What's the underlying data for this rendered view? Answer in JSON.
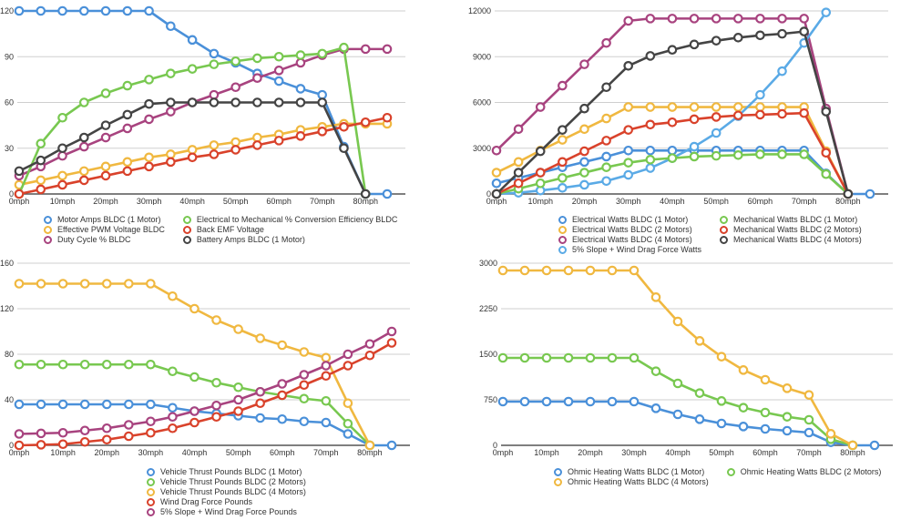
{
  "chart_data": [
    {
      "id": "chart1",
      "type": "line",
      "title": "",
      "xlabel": "",
      "ylabel": "",
      "x": [
        0,
        5,
        10,
        15,
        20,
        25,
        30,
        35,
        40,
        45,
        50,
        55,
        60,
        65,
        70,
        75,
        80,
        85
      ],
      "x_tick_labels": [
        "0mph",
        "10mph",
        "20mph",
        "30mph",
        "40mph",
        "50mph",
        "60mph",
        "70mph",
        "80mph"
      ],
      "x_tick_values": [
        0,
        10,
        20,
        30,
        40,
        50,
        60,
        70,
        80
      ],
      "ylim": [
        0,
        120
      ],
      "y_ticks": [
        0,
        30,
        60,
        90,
        120
      ],
      "grid": true,
      "legend_position": "bottom",
      "legend_columns": 2,
      "series": [
        {
          "name": "Motor Amps BLDC (1 Motor)",
          "color": "#4a90d9",
          "values": [
            120,
            120,
            120,
            120,
            120,
            120,
            120,
            110,
            101,
            92,
            86,
            79,
            74,
            69,
            65,
            31,
            0,
            0
          ]
        },
        {
          "name": "Effective PWM Voltage BLDC",
          "color": "#f0b840",
          "values": [
            6,
            9,
            12,
            15,
            18,
            21,
            24,
            26,
            29,
            32,
            34,
            37,
            39,
            42,
            44,
            46,
            46,
            46
          ]
        },
        {
          "name": "Duty Cycle % BLDC",
          "color": "#a8437f",
          "values": [
            12,
            18,
            25,
            31,
            37,
            43,
            49,
            54,
            60,
            65,
            70,
            76,
            81,
            86,
            91,
            95,
            95,
            95
          ]
        },
        {
          "name": "Electrical to Mechanical % Conversion Efficiency BLDC",
          "color": "#78c850",
          "values": [
            0,
            33,
            50,
            60,
            66,
            71,
            75,
            79,
            82,
            85,
            87,
            89,
            90,
            91,
            92,
            96,
            0,
            null
          ]
        },
        {
          "name": "Back EMF Voltage",
          "color": "#d9422b",
          "values": [
            0,
            3,
            6,
            9,
            12,
            15,
            18,
            21,
            24,
            26,
            29,
            32,
            35,
            38,
            41,
            44,
            47,
            50
          ]
        },
        {
          "name": "Battery Amps BLDC (1 Motor)",
          "color": "#444444",
          "values": [
            15,
            22,
            30,
            37,
            45,
            52,
            59,
            60,
            60,
            60,
            60,
            60,
            60,
            60,
            60,
            30,
            0,
            null
          ]
        }
      ]
    },
    {
      "id": "chart2",
      "type": "line",
      "title": "",
      "xlabel": "",
      "ylabel": "",
      "x": [
        0,
        5,
        10,
        15,
        20,
        25,
        30,
        35,
        40,
        45,
        50,
        55,
        60,
        65,
        70,
        75,
        80,
        85
      ],
      "x_tick_labels": [
        "0mph",
        "10mph",
        "20mph",
        "30mph",
        "40mph",
        "50mph",
        "60mph",
        "70mph",
        "80mph"
      ],
      "x_tick_values": [
        0,
        10,
        20,
        30,
        40,
        50,
        60,
        70,
        80
      ],
      "ylim": [
        0,
        12000
      ],
      "y_ticks": [
        0,
        3000,
        6000,
        9000,
        12000
      ],
      "grid": true,
      "legend_position": "bottom",
      "legend_columns": 2,
      "series": [
        {
          "name": "Electrical Watts BLDC (1 Motor)",
          "color": "#4a90d9",
          "values": [
            700,
            1050,
            1400,
            1750,
            2100,
            2450,
            2850,
            2850,
            2850,
            2850,
            2850,
            2850,
            2850,
            2850,
            2850,
            1350,
            0,
            0
          ]
        },
        {
          "name": "Electrical Watts BLDC (2 Motors)",
          "color": "#f0b840",
          "values": [
            1400,
            2100,
            2850,
            3550,
            4250,
            4950,
            5700,
            5700,
            5700,
            5700,
            5700,
            5700,
            5700,
            5700,
            5700,
            2800,
            0,
            null
          ]
        },
        {
          "name": "Electrical Watts BLDC (4 Motors)",
          "color": "#a8437f",
          "values": [
            2850,
            4250,
            5700,
            7100,
            8500,
            9900,
            11350,
            11500,
            11500,
            11500,
            11500,
            11500,
            11500,
            11500,
            11500,
            5600,
            0,
            null
          ]
        },
        {
          "name": "5% Slope + Wind Drag Force Watts",
          "color": "#5aaae6",
          "values": [
            0,
            80,
            230,
            400,
            600,
            850,
            1250,
            1700,
            2350,
            3100,
            4000,
            5100,
            6500,
            8050,
            9900,
            11900,
            null,
            null
          ]
        },
        {
          "name": "Mechanical Watts BLDC (1 Motor)",
          "color": "#78c850",
          "values": [
            0,
            350,
            700,
            1050,
            1400,
            1750,
            2050,
            2250,
            2350,
            2450,
            2500,
            2550,
            2600,
            2600,
            2600,
            1300,
            0,
            null
          ]
        },
        {
          "name": "Mechanical Watts BLDC (2 Motors)",
          "color": "#d9422b",
          "values": [
            0,
            700,
            1400,
            2100,
            2800,
            3500,
            4200,
            4550,
            4700,
            4900,
            5050,
            5150,
            5200,
            5250,
            5300,
            2700,
            0,
            null
          ]
        },
        {
          "name": "Mechanical Watts BLDC (4 Motors)",
          "color": "#444444",
          "values": [
            0,
            1400,
            2800,
            4200,
            5600,
            7000,
            8400,
            9050,
            9450,
            9800,
            10050,
            10250,
            10400,
            10500,
            10650,
            5400,
            0,
            null
          ]
        }
      ]
    },
    {
      "id": "chart3",
      "type": "line",
      "title": "",
      "xlabel": "",
      "ylabel": "",
      "x": [
        0,
        5,
        10,
        15,
        20,
        25,
        30,
        35,
        40,
        45,
        50,
        55,
        60,
        65,
        70,
        75,
        80,
        85
      ],
      "x_tick_labels": [
        "0mph",
        "10mph",
        "20mph",
        "30mph",
        "40mph",
        "50mph",
        "60mph",
        "70mph",
        "80mph"
      ],
      "x_tick_values": [
        0,
        10,
        20,
        30,
        40,
        50,
        60,
        70,
        80
      ],
      "ylim": [
        0,
        160
      ],
      "y_ticks": [
        0,
        40,
        80,
        120,
        160
      ],
      "grid": true,
      "legend_position": "bottom",
      "legend_columns": 1,
      "series": [
        {
          "name": "Vehicle Thrust Pounds BLDC (1 Motor)",
          "color": "#4a90d9",
          "values": [
            36,
            36,
            36,
            36,
            36,
            36,
            36,
            33,
            30,
            28,
            26,
            24,
            23,
            21,
            20,
            10,
            0,
            0
          ]
        },
        {
          "name": "Vehicle Thrust Pounds BLDC (2 Motors)",
          "color": "#78c850",
          "values": [
            71,
            71,
            71,
            71,
            71,
            71,
            71,
            65,
            60,
            55,
            51,
            47,
            44,
            41,
            39,
            19,
            0,
            null
          ]
        },
        {
          "name": "Vehicle Thrust Pounds BLDC (4 Motors)",
          "color": "#f0b840",
          "values": [
            142,
            142,
            142,
            142,
            142,
            142,
            142,
            131,
            120,
            110,
            102,
            94,
            88,
            82,
            77,
            37,
            0,
            null
          ]
        },
        {
          "name": "Wind Drag Force Pounds",
          "color": "#d9422b",
          "values": [
            0,
            0.5,
            1,
            3,
            5,
            8,
            11,
            15,
            20,
            25,
            30,
            37,
            44,
            53,
            61,
            70,
            79,
            90
          ]
        },
        {
          "name": "5% Slope + Wind Drag Force Pounds",
          "color": "#a8437f",
          "values": [
            10,
            10.5,
            11,
            13,
            15,
            18,
            21,
            25,
            30,
            35,
            40,
            47,
            54,
            62,
            70,
            80,
            89,
            100
          ]
        }
      ]
    },
    {
      "id": "chart4",
      "type": "line",
      "title": "",
      "xlabel": "",
      "ylabel": "",
      "x": [
        0,
        5,
        10,
        15,
        20,
        25,
        30,
        35,
        40,
        45,
        50,
        55,
        60,
        65,
        70,
        75,
        80,
        85
      ],
      "x_tick_labels": [
        "0mph",
        "10mph",
        "20mph",
        "30mph",
        "40mph",
        "50mph",
        "60mph",
        "70mph",
        "80mph"
      ],
      "x_tick_values": [
        0,
        10,
        20,
        30,
        40,
        50,
        60,
        70,
        80
      ],
      "ylim": [
        0,
        3000
      ],
      "y_ticks": [
        0,
        750,
        1500,
        2250,
        3000
      ],
      "grid": true,
      "legend_position": "bottom",
      "legend_columns": 2,
      "series": [
        {
          "name": "Ohmic Heating Watts BLDC (1 Motor)",
          "color": "#4a90d9",
          "values": [
            720,
            720,
            720,
            720,
            720,
            720,
            720,
            610,
            510,
            430,
            360,
            310,
            270,
            240,
            210,
            50,
            0,
            0
          ]
        },
        {
          "name": "Ohmic Heating Watts BLDC (2 Motors)",
          "color": "#78c850",
          "values": [
            1440,
            1440,
            1440,
            1440,
            1440,
            1440,
            1440,
            1220,
            1020,
            860,
            730,
            620,
            540,
            470,
            420,
            100,
            0,
            null
          ]
        },
        {
          "name": "Ohmic Heating Watts BLDC (4 Motors)",
          "color": "#f0b840",
          "values": [
            2880,
            2880,
            2880,
            2880,
            2880,
            2880,
            2880,
            2440,
            2040,
            1720,
            1460,
            1240,
            1080,
            940,
            830,
            190,
            0,
            null
          ]
        }
      ]
    }
  ]
}
